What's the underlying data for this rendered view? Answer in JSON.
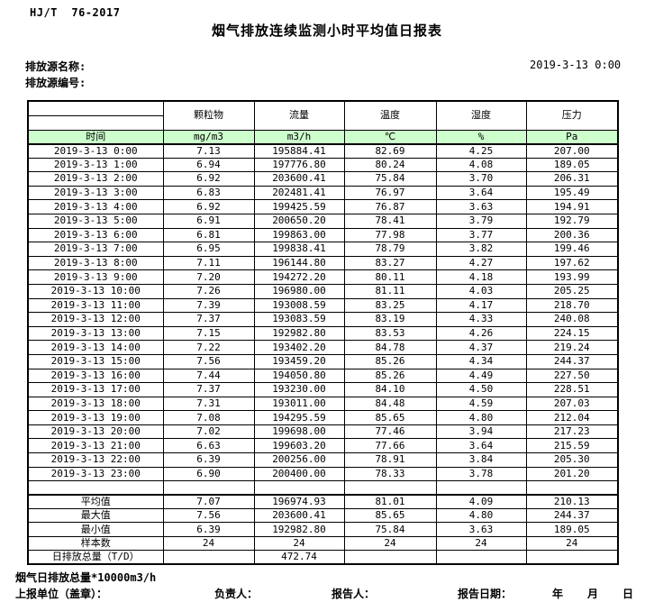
{
  "header": {
    "standard": "HJ/T  76-2017",
    "title": "烟气排放连续监测小时平均值日报表",
    "source_name_label": "排放源名称:",
    "source_id_label": "排放源编号:",
    "datetime": "2019-3-13  0:00"
  },
  "table": {
    "time_label": "时间",
    "columns": [
      "颗粒物",
      "流量",
      "温度",
      "湿度",
      "压力"
    ],
    "units": [
      "mg/m3",
      "m3/h",
      "℃",
      "%",
      "Pa"
    ],
    "rows": [
      [
        "2019-3-13 0:00",
        "7.13",
        "195884.41",
        "82.69",
        "4.25",
        "207.00"
      ],
      [
        "2019-3-13 1:00",
        "6.94",
        "197776.80",
        "80.24",
        "4.08",
        "189.05"
      ],
      [
        "2019-3-13 2:00",
        "6.92",
        "203600.41",
        "75.84",
        "3.70",
        "206.31"
      ],
      [
        "2019-3-13 3:00",
        "6.83",
        "202481.41",
        "76.97",
        "3.64",
        "195.49"
      ],
      [
        "2019-3-13 4:00",
        "6.92",
        "199425.59",
        "76.87",
        "3.63",
        "194.91"
      ],
      [
        "2019-3-13 5:00",
        "6.91",
        "200650.20",
        "78.41",
        "3.79",
        "192.79"
      ],
      [
        "2019-3-13 6:00",
        "6.81",
        "199863.00",
        "77.98",
        "3.77",
        "200.36"
      ],
      [
        "2019-3-13 7:00",
        "6.95",
        "199838.41",
        "78.79",
        "3.82",
        "199.46"
      ],
      [
        "2019-3-13 8:00",
        "7.11",
        "196144.80",
        "83.27",
        "4.27",
        "197.62"
      ],
      [
        "2019-3-13 9:00",
        "7.20",
        "194272.20",
        "80.11",
        "4.18",
        "193.99"
      ],
      [
        "2019-3-13 10:00",
        "7.26",
        "196980.00",
        "81.11",
        "4.03",
        "205.25"
      ],
      [
        "2019-3-13 11:00",
        "7.39",
        "193008.59",
        "83.25",
        "4.17",
        "218.70"
      ],
      [
        "2019-3-13 12:00",
        "7.37",
        "193083.59",
        "83.19",
        "4.33",
        "240.08"
      ],
      [
        "2019-3-13 13:00",
        "7.15",
        "192982.80",
        "83.53",
        "4.26",
        "224.15"
      ],
      [
        "2019-3-13 14:00",
        "7.22",
        "193402.20",
        "84.78",
        "4.37",
        "219.24"
      ],
      [
        "2019-3-13 15:00",
        "7.56",
        "193459.20",
        "85.26",
        "4.34",
        "244.37"
      ],
      [
        "2019-3-13 16:00",
        "7.44",
        "194050.80",
        "85.26",
        "4.49",
        "227.50"
      ],
      [
        "2019-3-13 17:00",
        "7.37",
        "193230.00",
        "84.10",
        "4.50",
        "228.51"
      ],
      [
        "2019-3-13 18:00",
        "7.31",
        "193011.00",
        "84.48",
        "4.59",
        "207.03"
      ],
      [
        "2019-3-13 19:00",
        "7.08",
        "194295.59",
        "85.65",
        "4.80",
        "212.04"
      ],
      [
        "2019-3-13 20:00",
        "7.02",
        "199698.00",
        "77.46",
        "3.94",
        "217.23"
      ],
      [
        "2019-3-13 21:00",
        "6.63",
        "199603.20",
        "77.66",
        "3.64",
        "215.59"
      ],
      [
        "2019-3-13 22:00",
        "6.39",
        "200256.00",
        "78.91",
        "3.84",
        "205.30"
      ],
      [
        "2019-3-13 23:00",
        "6.90",
        "200400.00",
        "78.33",
        "3.78",
        "201.20"
      ]
    ],
    "summary": [
      {
        "label": "平均值",
        "values": [
          "7.07",
          "196974.93",
          "81.01",
          "4.09",
          "210.13"
        ]
      },
      {
        "label": "最大值",
        "values": [
          "7.56",
          "203600.41",
          "85.65",
          "4.80",
          "244.37"
        ]
      },
      {
        "label": "最小值",
        "values": [
          "6.39",
          "192982.80",
          "75.84",
          "3.63",
          "189.05"
        ]
      },
      {
        "label": "样本数",
        "values": [
          "24",
          "24",
          "24",
          "24",
          "24"
        ]
      },
      {
        "label": "日排放总量（T/D）",
        "values": [
          "",
          "472.74",
          "",
          "",
          ""
        ]
      }
    ]
  },
  "footer": {
    "note": "烟气日排放总量*10000m3/h",
    "unit_seal_label": "上报单位（盖章）：",
    "responsible_label": "负责人：",
    "reporter_label": "报告人：",
    "report_date_label": "报告日期：",
    "year_label": "年",
    "month_label": "月",
    "day_label": "日"
  },
  "colors": {
    "header_row_green": "#ccffcc"
  }
}
